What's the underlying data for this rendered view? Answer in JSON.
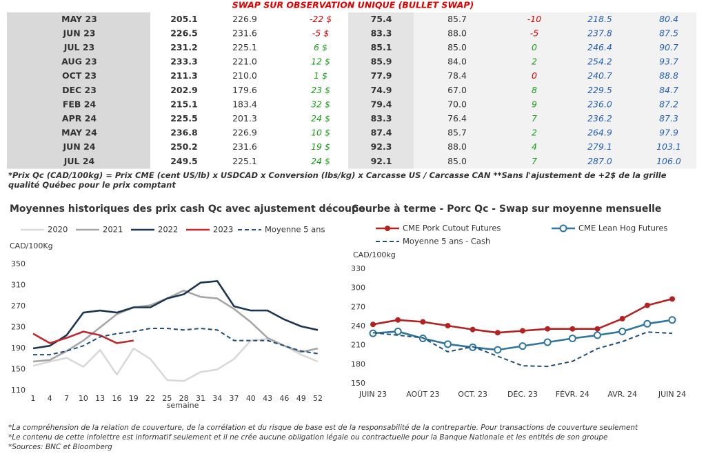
{
  "title": "SWAP SUR OBSERVATION UNIQUE (BULLET SWAP)",
  "table": {
    "rows": [
      [
        "MAY 23",
        "205.1",
        "226.9",
        "-22 $",
        "75.4",
        "85.7",
        "-10",
        "218.5",
        "80.4"
      ],
      [
        "JUN 23",
        "226.5",
        "231.6",
        "-5 $",
        "83.3",
        "88.0",
        "-5",
        "237.8",
        "87.5"
      ],
      [
        "JUL 23",
        "231.2",
        "225.1",
        "6 $",
        "85.1",
        "85.0",
        "0",
        "246.4",
        "90.7"
      ],
      [
        "AUG 23",
        "233.3",
        "221.0",
        "12 $",
        "85.9",
        "84.0",
        "2",
        "254.2",
        "93.7"
      ],
      [
        "OCT 23",
        "211.3",
        "210.0",
        "1 $",
        "77.9",
        "78.4",
        "0",
        "240.7",
        "88.8"
      ],
      [
        "DEC 23",
        "202.9",
        "179.6",
        "23 $",
        "74.9",
        "67.0",
        "8",
        "229.5",
        "84.7"
      ],
      [
        "FEB 24",
        "215.1",
        "183.4",
        "32 $",
        "79.4",
        "70.0",
        "9",
        "236.0",
        "87.2"
      ],
      [
        "APR 24",
        "225.5",
        "201.3",
        "24 $",
        "83.3",
        "76.4",
        "7",
        "236.2",
        "87.3"
      ],
      [
        "MAY 24",
        "236.8",
        "226.9",
        "10 $",
        "87.4",
        "85.7",
        "2",
        "264.9",
        "97.9"
      ],
      [
        "JUN 24",
        "250.2",
        "231.6",
        "19 $",
        "92.3",
        "88.0",
        "4",
        "279.1",
        "103.1"
      ],
      [
        "JUL 24",
        "249.5",
        "225.1",
        "24 $",
        "92.1",
        "85.0",
        "7",
        "287.0",
        "106.0"
      ]
    ],
    "diff_colors": [
      [
        "#e00000",
        "#e00000"
      ],
      [
        "#e00000",
        "#e00000"
      ],
      [
        "#1aa01a",
        "#1aa01a"
      ],
      [
        "#1aa01a",
        "#1aa01a"
      ],
      [
        "#1aa01a",
        "#e00000"
      ],
      [
        "#1aa01a",
        "#1aa01a"
      ],
      [
        "#1aa01a",
        "#1aa01a"
      ],
      [
        "#1aa01a",
        "#1aa01a"
      ],
      [
        "#1aa01a",
        "#1aa01a"
      ],
      [
        "#1aa01a",
        "#1aa01a"
      ],
      [
        "#1aa01a",
        "#1aa01a"
      ]
    ],
    "forecast_color": "#2460b8"
  },
  "footnote": "*Prix Qc (CAD/100kg) = Prix CME (cent US/lb) x USDCAD x Conversion (lbs/kg) x Carcasse US / Carcasse CAN **Sans l'ajustement de +2$ de la grille qualité Québec pour le prix comptant",
  "chart_data": [
    {
      "type": "line",
      "title": "Moyennes historiques des prix cash Qc avec ajustement découpe",
      "y_unit": "CAD/100Kg",
      "x_label": "semaine",
      "x": [
        1,
        4,
        7,
        10,
        13,
        16,
        19,
        22,
        25,
        28,
        31,
        34,
        37,
        40,
        43,
        46,
        49,
        52
      ],
      "xlim": [
        1,
        52
      ],
      "xticks": [
        1,
        4,
        7,
        10,
        13,
        16,
        19,
        22,
        25,
        28,
        31,
        34,
        37,
        40,
        43,
        46,
        49,
        52
      ],
      "ylim": [
        110,
        350
      ],
      "yticks": [
        110,
        150,
        190,
        230,
        270,
        310,
        350
      ],
      "grid": false,
      "series": [
        {
          "name": "2020",
          "color": "#d9d9d9",
          "values": [
            157,
            165,
            172,
            155,
            187,
            140,
            190,
            170,
            130,
            128,
            145,
            150,
            170,
            205,
            208,
            195,
            178,
            165
          ]
        },
        {
          "name": "2021",
          "color": "#a6a6a6",
          "values": [
            165,
            168,
            185,
            205,
            230,
            255,
            268,
            272,
            285,
            300,
            288,
            285,
            265,
            240,
            210,
            195,
            183,
            190
          ]
        },
        {
          "name": "2022",
          "color": "#1c3550",
          "values": [
            190,
            195,
            215,
            258,
            262,
            258,
            268,
            268,
            285,
            293,
            315,
            318,
            270,
            262,
            262,
            245,
            232,
            225
          ]
        },
        {
          "name": "2023",
          "color": "#c0282d",
          "values": [
            218,
            200,
            210,
            222,
            215,
            200,
            205,
            null,
            null,
            null,
            null,
            null,
            null,
            null,
            null,
            null,
            null,
            null
          ]
        },
        {
          "name": "Moyenne 5 ans",
          "color": "#1f4e79",
          "dash": true,
          "values": [
            178,
            178,
            185,
            195,
            212,
            218,
            222,
            228,
            228,
            225,
            228,
            225,
            205,
            205,
            205,
            195,
            185,
            180
          ]
        }
      ]
    },
    {
      "type": "line",
      "title": "Courbe à terme - Porc Qc - Swap sur moyenne mensuelle",
      "y_unit": "CAD/100kg",
      "categories": [
        "JUIN 23",
        null,
        "AOÛT 23",
        null,
        "OCT. 23",
        null,
        "DÉC. 23",
        null,
        "FÉVR. 24",
        null,
        "AVR. 24",
        null,
        "JUIN 24"
      ],
      "ylim": [
        150,
        330
      ],
      "yticks": [
        150,
        180,
        210,
        240,
        270,
        300,
        330
      ],
      "grid": false,
      "series": [
        {
          "name": "CME Pork Cutout Futures",
          "color": "#b22222",
          "marker": "dot",
          "values": [
            243,
            250,
            247,
            241,
            235,
            230,
            233,
            236,
            236,
            236,
            252,
            273,
            283
          ]
        },
        {
          "name": "CME Lean Hog Futures",
          "color": "#2e75a0",
          "marker": "ring",
          "values": [
            229,
            232,
            221,
            212,
            207,
            203,
            209,
            215,
            221,
            226,
            232,
            244,
            250
          ]
        },
        {
          "name": "Moyenne 5 ans - Cash",
          "color": "#1f4e79",
          "dash": true,
          "values": [
            230,
            226,
            222,
            200,
            208,
            193,
            178,
            177,
            185,
            205,
            216,
            231,
            229
          ]
        }
      ]
    }
  ],
  "notes": [
    "*La compréhension de la relation de couverture, de la corrélation et du risque de base est de la responsabilité de la contrepartie. Pour transactions de couverture seulement",
    "*Le contenu de cette infolettre est informatif seulement et il ne crée aucune obligation légale ou contractuelle pour la Banque Nationale et les entités de son groupe",
    "*Sources: BNC et Bloomberg"
  ]
}
